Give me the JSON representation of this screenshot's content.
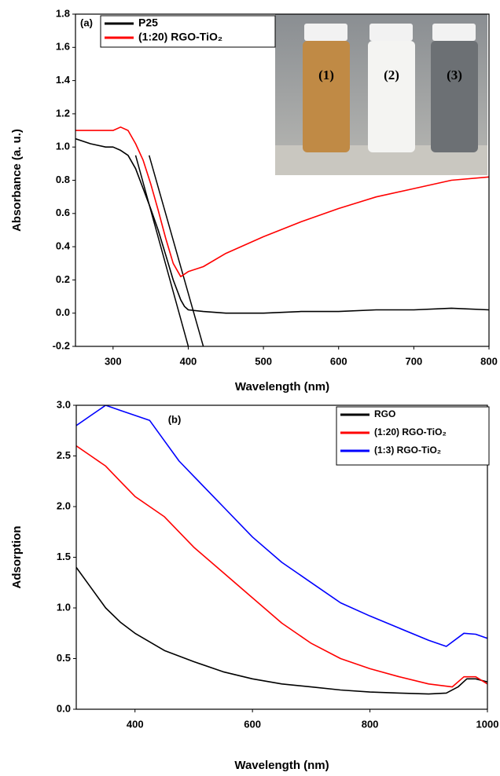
{
  "chart_data": [
    {
      "type": "line",
      "panel_label": "(a)",
      "x_label": "Wavelength (nm)",
      "y_label": "Absorbance  (a. u.)",
      "xlim": [
        250,
        800
      ],
      "xticks": [
        300,
        400,
        500,
        600,
        700,
        800
      ],
      "ylim": [
        -0.2,
        1.8
      ],
      "yticks": [
        -0.2,
        {
          "value": 0,
          "label": "0.0"
        },
        0.2,
        0.4,
        0.6,
        0.8,
        {
          "value": 1,
          "label": "1.0"
        },
        1.2,
        1.4,
        1.6,
        1.8
      ],
      "legend": "upper left",
      "series": [
        {
          "name": "P25",
          "color": "#000000",
          "x": [
            250,
            270,
            290,
            300,
            310,
            320,
            330,
            340,
            350,
            360,
            370,
            380,
            390,
            395,
            400,
            420,
            450,
            500,
            550,
            600,
            650,
            700,
            750,
            800
          ],
          "values": [
            1.05,
            1.02,
            1.0,
            1.0,
            0.98,
            0.95,
            0.87,
            0.75,
            0.63,
            0.5,
            0.35,
            0.2,
            0.08,
            0.04,
            0.02,
            0.01,
            0.0,
            0.0,
            0.01,
            0.01,
            0.02,
            0.02,
            0.03,
            0.02
          ]
        },
        {
          "name": "(1:20) RGO-TiO₂",
          "color": "#ff0000",
          "x": [
            250,
            270,
            290,
            300,
            310,
            320,
            330,
            340,
            350,
            360,
            370,
            380,
            390,
            400,
            420,
            450,
            500,
            550,
            600,
            650,
            700,
            750,
            800
          ],
          "values": [
            1.1,
            1.1,
            1.1,
            1.1,
            1.12,
            1.1,
            1.02,
            0.92,
            0.78,
            0.62,
            0.45,
            0.3,
            0.22,
            0.25,
            0.28,
            0.36,
            0.46,
            0.55,
            0.63,
            0.7,
            0.75,
            0.8,
            0.82
          ]
        }
      ],
      "reference_lines": [
        {
          "color": "#000000",
          "x": [
            330,
            400
          ],
          "values": [
            0.95,
            -0.2
          ]
        },
        {
          "color": "#000000",
          "x": [
            348,
            420
          ],
          "values": [
            0.95,
            -0.2
          ]
        }
      ],
      "inset_labels": [
        "(1)",
        "(2)",
        "(3)"
      ]
    },
    {
      "type": "line",
      "panel_label": "(b)",
      "x_label": "Wavelength (nm)",
      "y_label": "Adsorption",
      "xlim": [
        300,
        1000
      ],
      "xticks": [
        400,
        600,
        800,
        1000
      ],
      "ylim": [
        0,
        3
      ],
      "yticks": [
        {
          "value": 0,
          "label": "0.0"
        },
        0.5,
        {
          "value": 1,
          "label": "1.0"
        },
        1.5,
        {
          "value": 2,
          "label": "2.0"
        },
        2.5,
        {
          "value": 3,
          "label": "3.0"
        }
      ],
      "legend": "upper right",
      "series": [
        {
          "name": "RGO",
          "color": "#000000",
          "x": [
            300,
            325,
            350,
            375,
            400,
            450,
            500,
            550,
            600,
            650,
            700,
            750,
            800,
            850,
            900,
            930,
            950,
            965,
            980,
            1000
          ],
          "values": [
            1.4,
            1.2,
            1.0,
            0.86,
            0.75,
            0.58,
            0.47,
            0.37,
            0.3,
            0.25,
            0.22,
            0.19,
            0.17,
            0.16,
            0.15,
            0.16,
            0.22,
            0.3,
            0.3,
            0.27
          ]
        },
        {
          "name": "(1:20) RGO-TiO₂",
          "color": "#ff0000",
          "x": [
            300,
            325,
            350,
            375,
            400,
            425,
            450,
            500,
            550,
            600,
            650,
            700,
            750,
            800,
            850,
            900,
            940,
            960,
            980,
            1000
          ],
          "values": [
            2.6,
            2.5,
            2.4,
            2.25,
            2.1,
            2.0,
            1.9,
            1.6,
            1.35,
            1.1,
            0.85,
            0.65,
            0.5,
            0.4,
            0.32,
            0.25,
            0.22,
            0.32,
            0.32,
            0.25
          ]
        },
        {
          "name": "(1:3) RGO-TiO₂",
          "color": "#0000ff",
          "x": [
            300,
            325,
            350,
            375,
            400,
            425,
            450,
            475,
            500,
            550,
            600,
            650,
            700,
            750,
            800,
            850,
            900,
            930,
            960,
            980,
            1000
          ],
          "values": [
            2.8,
            2.9,
            3.0,
            2.95,
            2.9,
            2.85,
            2.65,
            2.45,
            2.3,
            2.0,
            1.7,
            1.45,
            1.25,
            1.05,
            0.92,
            0.8,
            0.68,
            0.62,
            0.75,
            0.74,
            0.7
          ]
        }
      ]
    }
  ]
}
